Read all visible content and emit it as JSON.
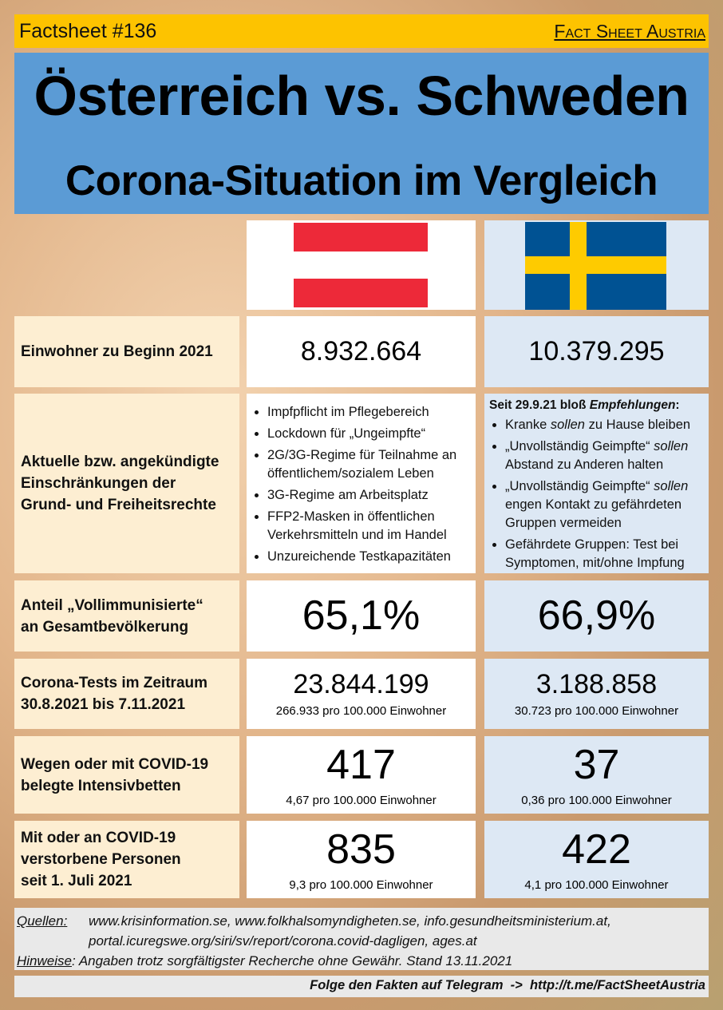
{
  "header": {
    "number": "Factsheet #136",
    "brand": "Fact Sheet Austria"
  },
  "title": {
    "line1": "Österreich vs. Schweden",
    "line2": "Corona-Situation im Vergleich"
  },
  "rows": [
    {
      "label": [
        "Einwohner zu Beginn 2021"
      ],
      "austria": {
        "value": "8.932.664"
      },
      "sweden": {
        "value": "10.379.295"
      }
    },
    {
      "label": [
        "Aktuelle bzw. angekündigte",
        "Einschränkungen der",
        "Grund- und Freiheitsrechte"
      ],
      "austria": {
        "bullets": [
          [
            "Impfpflicht im Pflegebereich"
          ],
          [
            "Lockdown für „Ungeimpfte“"
          ],
          [
            "2G/3G-Regime für Teilnahme an öffentlichem/sozialem Leben"
          ],
          [
            "3G-Regime am Arbeitsplatz"
          ],
          [
            "FFP2-Masken in öffentlichen Verkehrsmitteln und im Handel"
          ],
          [
            "Unzureichende Testkapazitäten"
          ]
        ]
      },
      "sweden": {
        "intro": [
          "Seit 29.9.21 bloß ",
          "Empfehlungen",
          ":"
        ],
        "bullets": [
          [
            "Kranke ",
            "sollen",
            " zu Hause bleiben"
          ],
          [
            "„Unvollständig Geimpfte“ ",
            "sollen",
            " Abstand zu Anderen halten"
          ],
          [
            "„Unvollständig Geimpfte“ ",
            "sollen",
            " engen Kontakt zu gefährdeten Gruppen vermeiden"
          ],
          [
            "Gefährdete Gruppen: Test bei Symptomen, mit/ohne Impfung"
          ]
        ]
      }
    },
    {
      "label": [
        "Anteil „Vollimmunisierte“",
        "an Gesamtbevölkerung"
      ],
      "austria": {
        "value": "65,1%"
      },
      "sweden": {
        "value": "66,9%"
      }
    },
    {
      "label": [
        "Corona-Tests im Zeitraum",
        "30.8.2021 bis 7.11.2021"
      ],
      "austria": {
        "value": "23.844.199",
        "sub": "266.933 pro 100.000 Einwohner"
      },
      "sweden": {
        "value": "3.188.858",
        "sub": "30.723 pro 100.000 Einwohner"
      }
    },
    {
      "label": [
        "Wegen oder mit COVID-19",
        "belegte Intensivbetten"
      ],
      "austria": {
        "value": "417",
        "sub": "4,67 pro 100.000 Einwohner"
      },
      "sweden": {
        "value": "37",
        "sub": "0,36 pro 100.000 Einwohner"
      }
    },
    {
      "label": [
        "Mit oder an COVID-19",
        "verstorbene Personen",
        "seit 1. Juli 2021"
      ],
      "austria": {
        "value": "835",
        "sub": "9,3 pro 100.000 Einwohner"
      },
      "sweden": {
        "value": "422",
        "sub": "4,1 pro 100.000 Einwohner"
      }
    }
  ],
  "sources": {
    "label": "Quellen",
    "lines": [
      "www.krisinformation.se, www.folkhalsomyndigheten.se, info.gesundheitsministerium.at,",
      "portal.icuregswe.org/siri/sv/report/corona.covid-dagligen, ages.at"
    ]
  },
  "notes": {
    "label": "Hinweise",
    "text": "Angaben trotz sorgfältigster Recherche ohne Gewähr. Stand 13.11.2021"
  },
  "footer": "Folge den Fakten auf Telegram  ->  http://t.me/FactSheetAustria"
}
